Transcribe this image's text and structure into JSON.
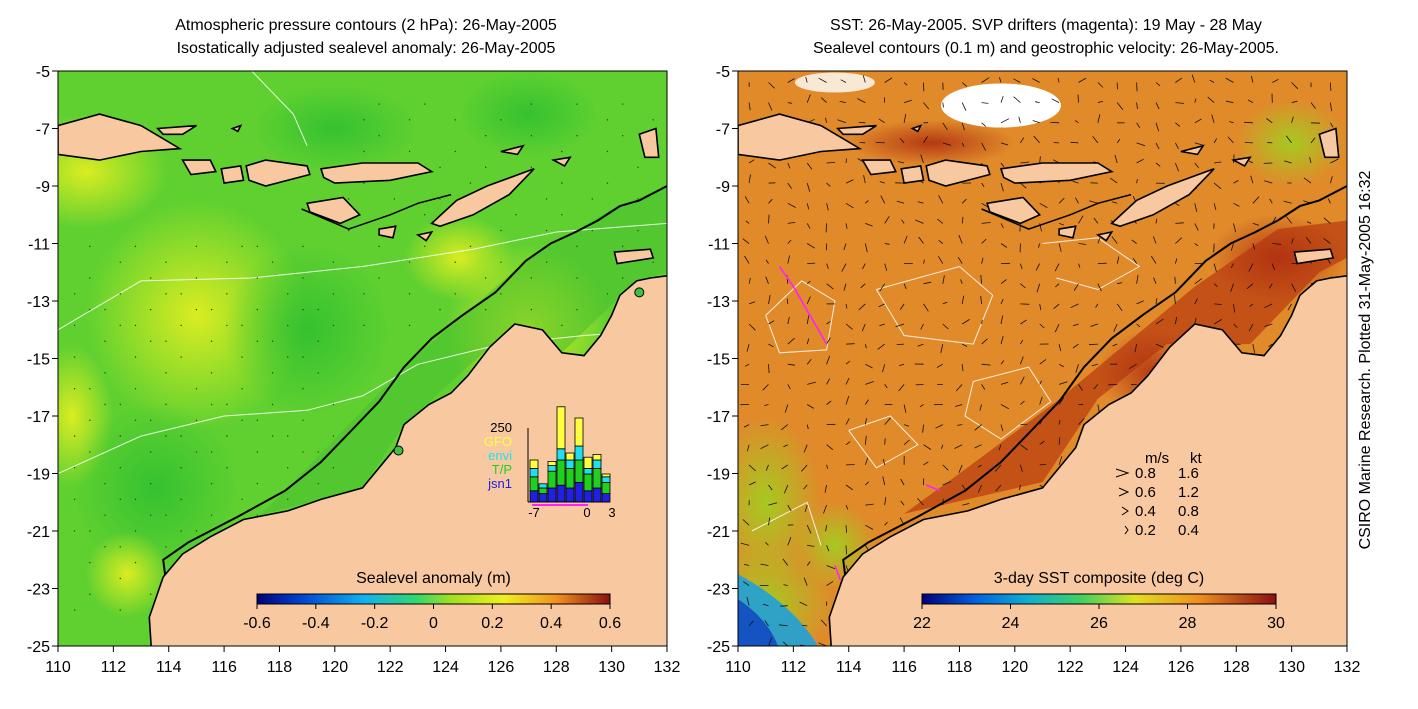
{
  "credit": "CSIRO Marine Research. Plotted 31-May-2005 16:32",
  "left_panel": {
    "title_line1": "Atmospheric pressure contours (2 hPa): 26-May-2005",
    "title_line2": "Isostatically adjusted sealevel anomaly: 26-May-2005",
    "x_ticks": [
      "110",
      "112",
      "114",
      "116",
      "118",
      "120",
      "122",
      "124",
      "126",
      "128",
      "130",
      "132"
    ],
    "y_ticks": [
      "-5",
      "-7",
      "-9",
      "-11",
      "-13",
      "-15",
      "-17",
      "-19",
      "-21",
      "-23",
      "-25"
    ],
    "lon_range": [
      110,
      132
    ],
    "lat_range": [
      -25,
      -5
    ],
    "colorbar": {
      "label": "Sealevel anomaly (m)",
      "ticks": [
        "-0.6",
        "-0.4",
        "-0.2",
        "0",
        "0.2",
        "0.4",
        "0.6"
      ],
      "range": [
        -0.6,
        0.6
      ]
    },
    "inset": {
      "ymax_label": "250",
      "x_ticks": [
        "-7",
        "0",
        "3"
      ],
      "legend": [
        {
          "label": "GFO",
          "color": "#ffff40"
        },
        {
          "label": "envi",
          "color": "#20e0f0"
        },
        {
          "label": "T/P",
          "color": "#20d020"
        },
        {
          "label": "jsn1",
          "color": "#2020e0"
        }
      ]
    }
  },
  "right_panel": {
    "title_line1": "SST: 26-May-2005. SVP drifters (magenta): 19 May - 28 May",
    "title_line2": "Sealevel contours (0.1 m) and geostrophic velocity: 26-May-2005.",
    "x_ticks": [
      "110",
      "112",
      "114",
      "116",
      "118",
      "120",
      "122",
      "124",
      "126",
      "128",
      "130",
      "132"
    ],
    "y_ticks": [
      "-5",
      "-7",
      "-9",
      "-11",
      "-13",
      "-15",
      "-17",
      "-19",
      "-21",
      "-23",
      "-25"
    ],
    "lon_range": [
      110,
      132
    ],
    "lat_range": [
      -25,
      -5
    ],
    "colorbar": {
      "label": "3-day SST composite (deg C)",
      "ticks": [
        "22",
        "24",
        "26",
        "28",
        "30"
      ],
      "range": [
        22,
        30
      ]
    },
    "velocity_key": {
      "header_ms": "m/s",
      "header_kt": "kt",
      "rows": [
        {
          "ms": "0.8",
          "kt": "1.6"
        },
        {
          "ms": "0.6",
          "kt": "1.2"
        },
        {
          "ms": "0.4",
          "kt": "0.8"
        },
        {
          "ms": "0.2",
          "kt": "0.4"
        }
      ]
    }
  },
  "colors": {
    "land": "#f8c8a0",
    "coast": "#000000",
    "ocean_left": "#5fd030",
    "ocean_right": "#e08a2a"
  }
}
